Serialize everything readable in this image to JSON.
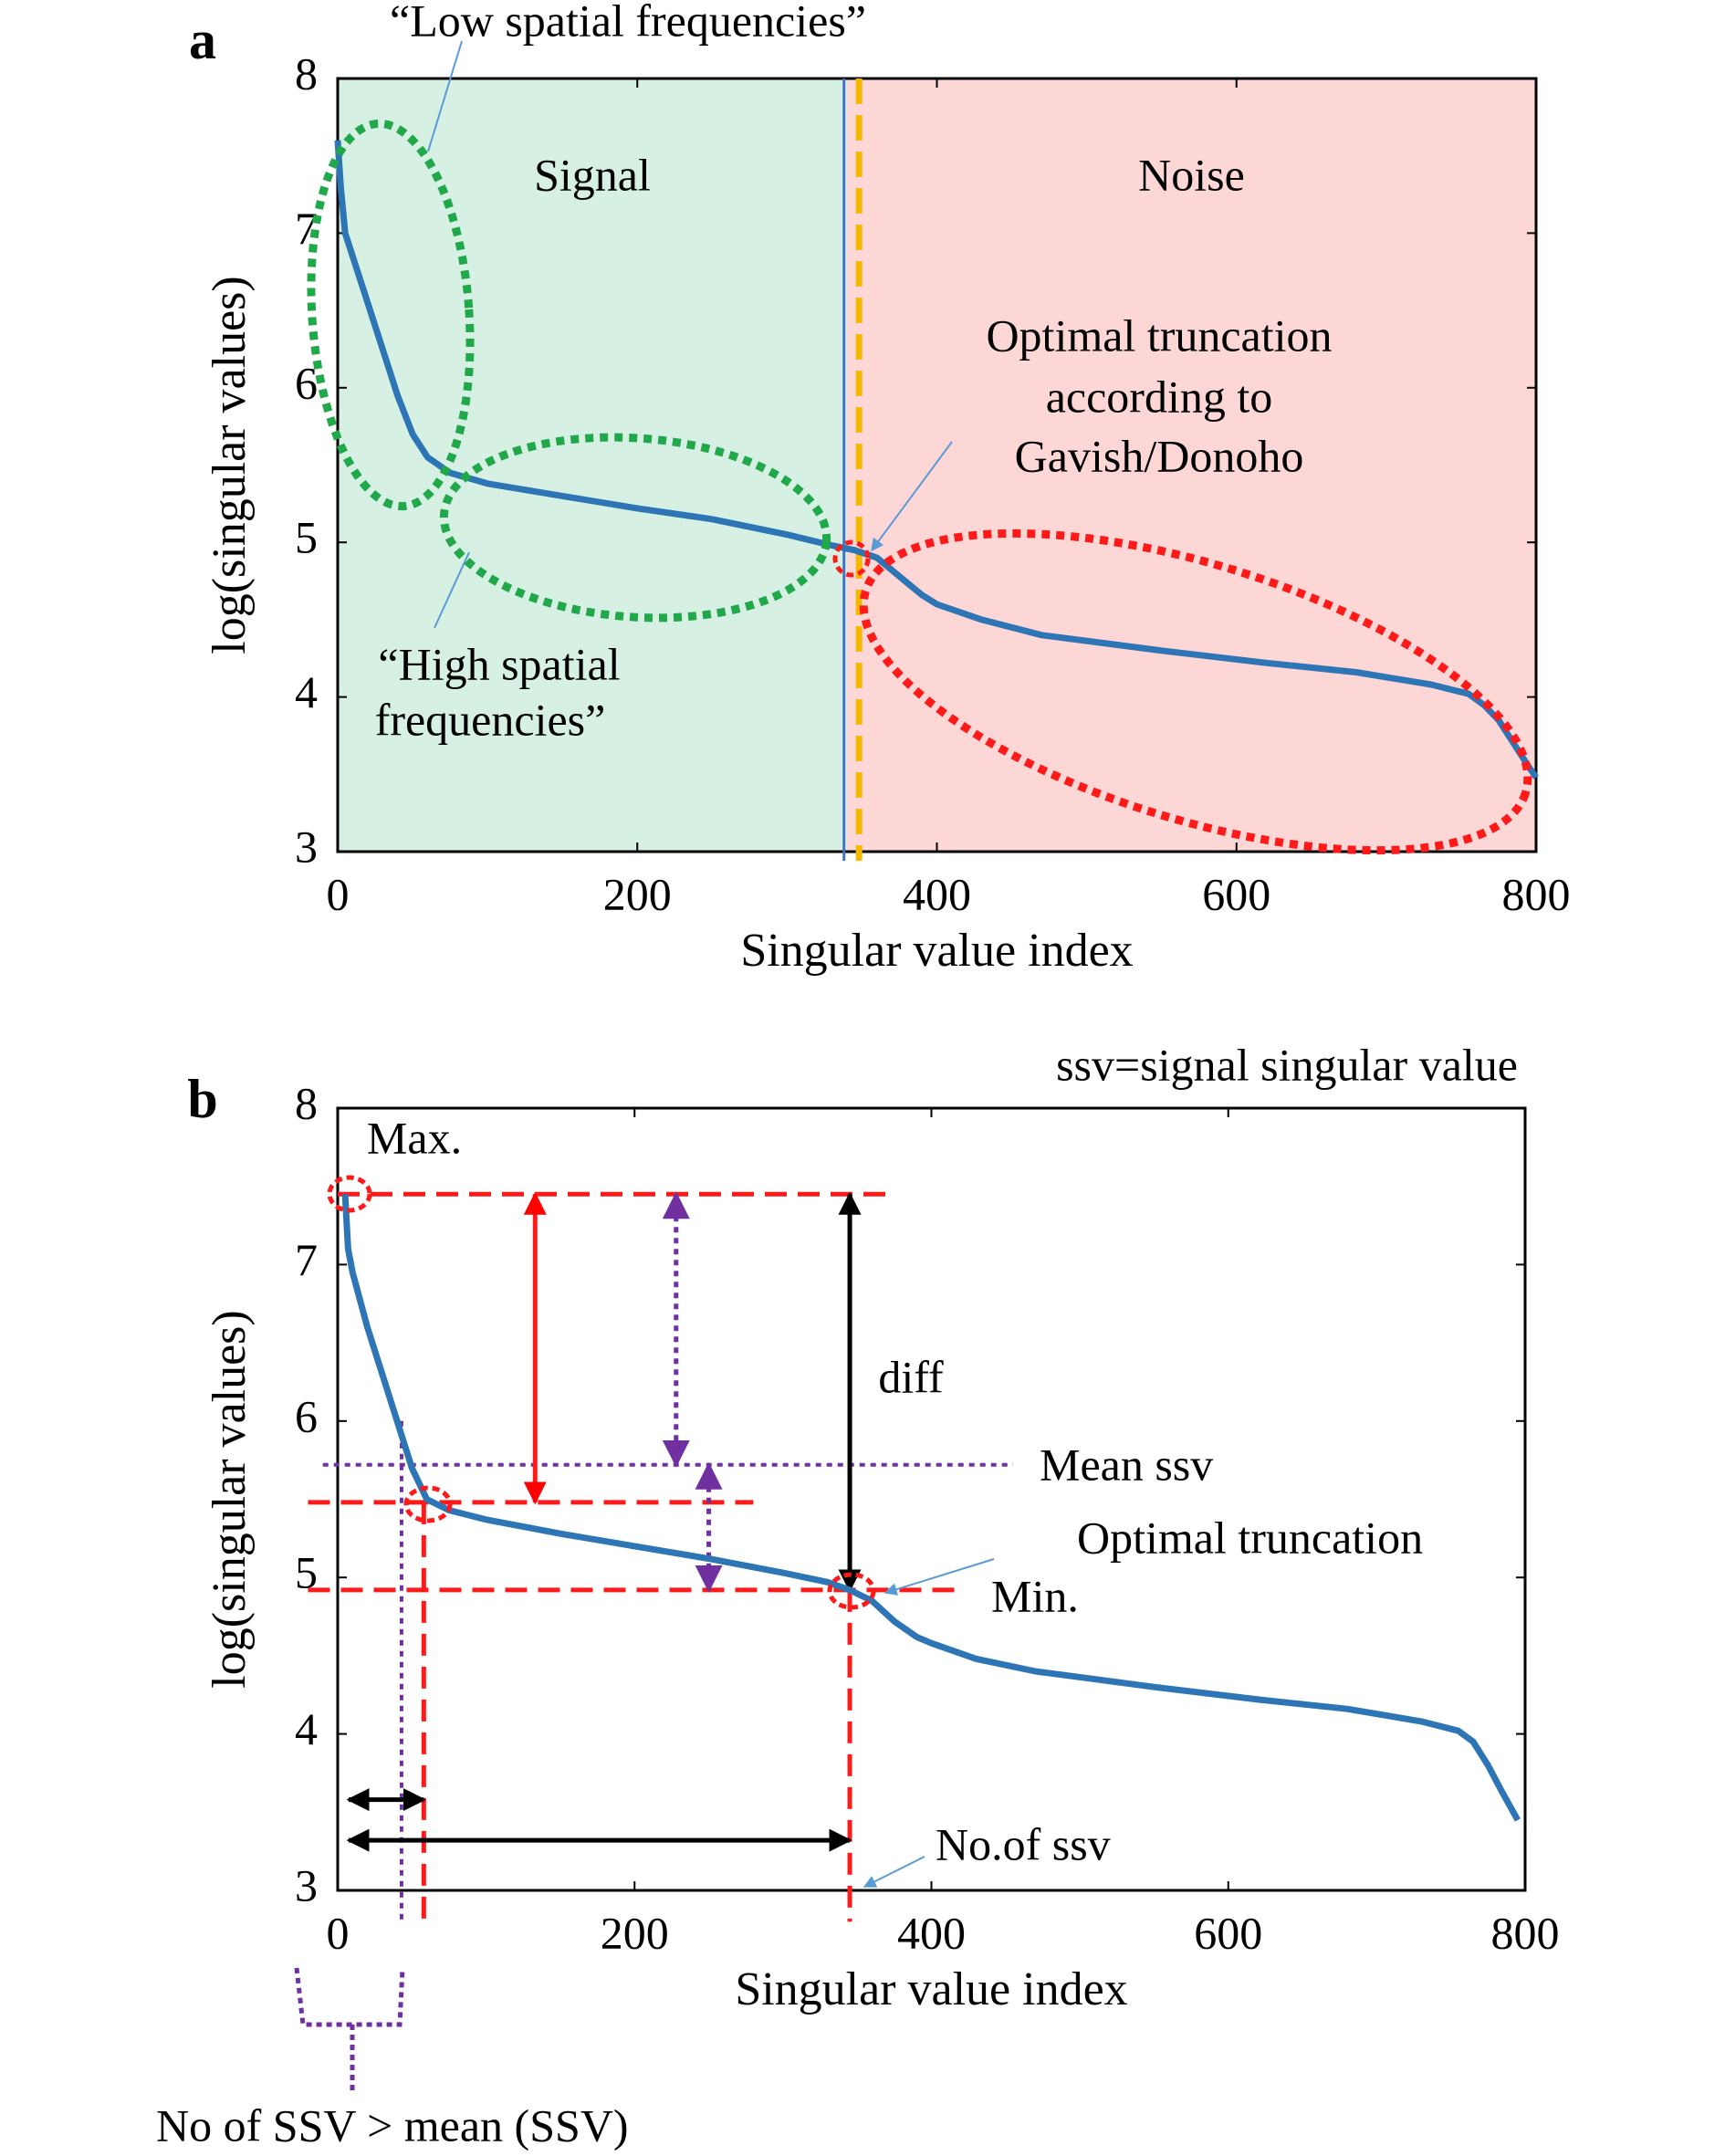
{
  "chart_data": [
    {
      "type": "line",
      "panel_label": "a",
      "xlabel": "Singular value index",
      "ylabel": "log(singular values)",
      "xlim": [
        0,
        800
      ],
      "ylim": [
        3,
        8
      ],
      "xticks": [
        0,
        200,
        400,
        600,
        800
      ],
      "yticks": [
        3,
        4,
        5,
        6,
        7,
        8
      ],
      "series": [
        {
          "color": "#2e75b6",
          "x": [
            0,
            2,
            5,
            10,
            20,
            30,
            40,
            50,
            60,
            75,
            100,
            150,
            200,
            250,
            300,
            330,
            345,
            360,
            375,
            390,
            400,
            430,
            470,
            550,
            620,
            680,
            730,
            755,
            765,
            775,
            785,
            795,
            800
          ],
          "values": [
            7.6,
            7.3,
            7.0,
            6.85,
            6.55,
            6.25,
            5.95,
            5.7,
            5.55,
            5.45,
            5.38,
            5.3,
            5.22,
            5.15,
            5.05,
            4.98,
            4.95,
            4.9,
            4.78,
            4.66,
            4.6,
            4.5,
            4.4,
            4.3,
            4.22,
            4.16,
            4.08,
            4.02,
            3.95,
            3.85,
            3.7,
            3.55,
            3.48
          ]
        }
      ],
      "regions": [
        {
          "label": "Signal",
          "from": 0,
          "to": 340,
          "color": "#d6f1e3"
        },
        {
          "label": "Noise",
          "from": 340,
          "to": 800,
          "color": "#fdd6d6"
        }
      ],
      "truncation_lines": [
        {
          "x": 338,
          "color": "#4472c4"
        },
        {
          "x": 348,
          "color": "#f5b800"
        }
      ],
      "annotations": {
        "low": "“Low spatial frequencies”",
        "high": [
          "“High spatial",
          "frequencies”"
        ],
        "optimal": [
          "Optimal truncation",
          "according to",
          "Gavish/Donoho"
        ]
      }
    },
    {
      "type": "line",
      "panel_label": "b",
      "xlabel": "Singular value index",
      "ylabel": "log(singular values)",
      "xlim": [
        0,
        800
      ],
      "ylim": [
        3,
        8
      ],
      "xticks": [
        0,
        200,
        400,
        600,
        800
      ],
      "yticks": [
        3,
        4,
        5,
        6,
        7,
        8
      ],
      "series": [
        {
          "color": "#2e75b6",
          "x": [
            5,
            7,
            10,
            20,
            30,
            40,
            50,
            60,
            75,
            100,
            150,
            200,
            250,
            300,
            330,
            345,
            360,
            375,
            390,
            400,
            430,
            470,
            550,
            620,
            680,
            730,
            755,
            765,
            775,
            785,
            795
          ],
          "values": [
            7.45,
            7.1,
            6.95,
            6.6,
            6.3,
            6.0,
            5.7,
            5.5,
            5.43,
            5.37,
            5.28,
            5.2,
            5.12,
            5.03,
            4.97,
            4.92,
            4.85,
            4.72,
            4.62,
            4.58,
            4.48,
            4.4,
            4.3,
            4.22,
            4.16,
            4.08,
            4.02,
            3.95,
            3.8,
            3.62,
            3.45
          ]
        }
      ],
      "max": 7.45,
      "mean_ssv": 5.72,
      "min": 4.92,
      "knee": {
        "x": 58,
        "y": 5.48
      },
      "mean_cross_x": 43,
      "truncation_x": 345,
      "annotations": {
        "subtitle": "ssv=signal singular value",
        "max": "Max.",
        "diff": "diff",
        "mean": "Mean ssv",
        "optimal": "Optimal truncation",
        "min": "Min.",
        "count": "No.of ssv",
        "count_mean": "No of SSV > mean (SSV)"
      }
    }
  ]
}
